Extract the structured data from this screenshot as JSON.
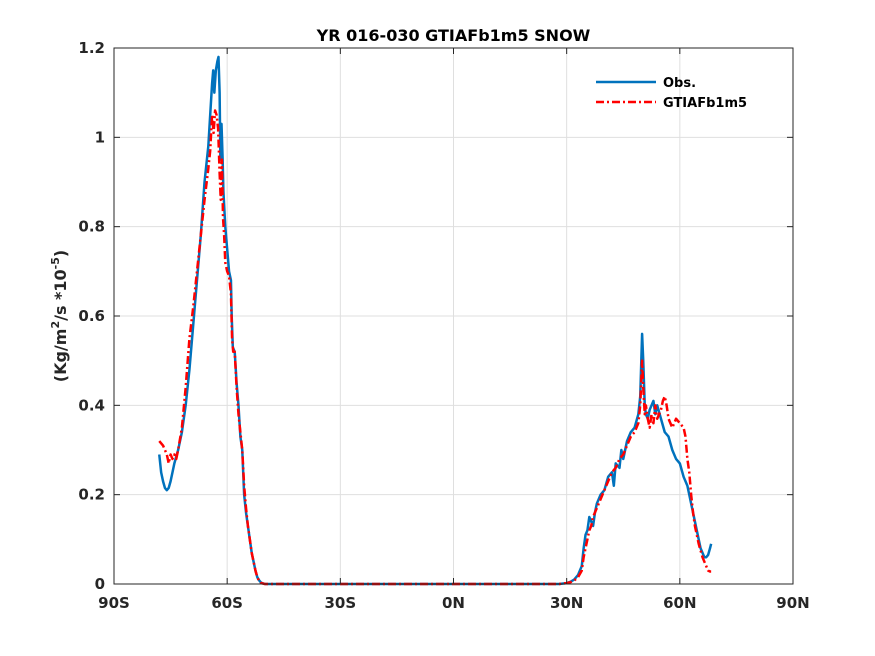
{
  "chart_data": {
    "type": "line",
    "title": "YR 016-030 GTIAFb1m5 SNOW",
    "xlabel": "",
    "ylabel_parts": {
      "prefix": "(Kg/m",
      "sup1": "2",
      "mid": "/s *10",
      "sup2": "-5",
      "suffix": ")"
    },
    "xlim": [
      -90,
      90
    ],
    "ylim": [
      0,
      1.2
    ],
    "x_ticks": [
      -90,
      -60,
      -30,
      0,
      30,
      60,
      90
    ],
    "x_tick_labels": [
      "90S",
      "60S",
      "30S",
      "0N",
      "30N",
      "60N",
      "90N"
    ],
    "y_ticks": [
      0,
      0.2,
      0.4,
      0.6,
      0.8,
      1,
      1.2
    ],
    "y_tick_labels": [
      "0",
      "0.2",
      "0.4",
      "0.6",
      "0.8",
      "1",
      "1.2"
    ],
    "grid": true,
    "legend_position": "top-right",
    "series": [
      {
        "name": "Obs.",
        "color": "#0072bd",
        "style": "solid",
        "points": [
          [
            -78,
            0.29
          ],
          [
            -77.5,
            0.25
          ],
          [
            -77,
            0.23
          ],
          [
            -76.5,
            0.215
          ],
          [
            -76,
            0.21
          ],
          [
            -75.5,
            0.215
          ],
          [
            -75,
            0.23
          ],
          [
            -74.5,
            0.25
          ],
          [
            -74,
            0.27
          ],
          [
            -73,
            0.3
          ],
          [
            -72,
            0.34
          ],
          [
            -71,
            0.4
          ],
          [
            -70,
            0.48
          ],
          [
            -69,
            0.58
          ],
          [
            -68,
            0.68
          ],
          [
            -67,
            0.78
          ],
          [
            -66,
            0.9
          ],
          [
            -65,
            0.98
          ],
          [
            -64.5,
            1.05
          ],
          [
            -64,
            1.12
          ],
          [
            -63.7,
            1.15
          ],
          [
            -63.4,
            1.1
          ],
          [
            -63,
            1.15
          ],
          [
            -62.6,
            1.17
          ],
          [
            -62.3,
            1.18
          ],
          [
            -62,
            1.1
          ],
          [
            -61.8,
            0.95
          ],
          [
            -61.5,
            1.03
          ],
          [
            -61.2,
            0.95
          ],
          [
            -61,
            0.88
          ],
          [
            -60.5,
            0.8
          ],
          [
            -60,
            0.75
          ],
          [
            -59.5,
            0.7
          ],
          [
            -59,
            0.68
          ],
          [
            -58.8,
            0.6
          ],
          [
            -58.5,
            0.53
          ],
          [
            -58,
            0.52
          ],
          [
            -57.5,
            0.45
          ],
          [
            -57,
            0.4
          ],
          [
            -56.5,
            0.33
          ],
          [
            -56,
            0.3
          ],
          [
            -55.5,
            0.2
          ],
          [
            -55,
            0.16
          ],
          [
            -54.5,
            0.13
          ],
          [
            -54,
            0.1
          ],
          [
            -53.5,
            0.07
          ],
          [
            -53,
            0.05
          ],
          [
            -52.5,
            0.03
          ],
          [
            -52,
            0.015
          ],
          [
            -51.5,
            0.008
          ],
          [
            -51,
            0.003
          ],
          [
            -50,
            0.0
          ],
          [
            -40,
            0.0
          ],
          [
            -30,
            0.0
          ],
          [
            -20,
            0.0
          ],
          [
            -10,
            0.0
          ],
          [
            0,
            0.0
          ],
          [
            10,
            0.0
          ],
          [
            20,
            0.0
          ],
          [
            28,
            0.0
          ],
          [
            30,
            0.002
          ],
          [
            31,
            0.005
          ],
          [
            32,
            0.01
          ],
          [
            33,
            0.02
          ],
          [
            34,
            0.04
          ],
          [
            34.5,
            0.08
          ],
          [
            35,
            0.11
          ],
          [
            35.5,
            0.12
          ],
          [
            36,
            0.15
          ],
          [
            36.5,
            0.14
          ],
          [
            37,
            0.13
          ],
          [
            37.5,
            0.16
          ],
          [
            38,
            0.18
          ],
          [
            39,
            0.2
          ],
          [
            40,
            0.21
          ],
          [
            41,
            0.24
          ],
          [
            42,
            0.25
          ],
          [
            42.5,
            0.22
          ],
          [
            43,
            0.27
          ],
          [
            44,
            0.26
          ],
          [
            44.5,
            0.3
          ],
          [
            45,
            0.28
          ],
          [
            46,
            0.32
          ],
          [
            47,
            0.34
          ],
          [
            48,
            0.35
          ],
          [
            49,
            0.38
          ],
          [
            49.5,
            0.42
          ],
          [
            50,
            0.56
          ],
          [
            50.3,
            0.5
          ],
          [
            50.7,
            0.4
          ],
          [
            51,
            0.38
          ],
          [
            51.5,
            0.37
          ],
          [
            52,
            0.39
          ],
          [
            52.5,
            0.4
          ],
          [
            53,
            0.41
          ],
          [
            53.5,
            0.38
          ],
          [
            54,
            0.4
          ],
          [
            55,
            0.37
          ],
          [
            56,
            0.34
          ],
          [
            57,
            0.33
          ],
          [
            58,
            0.3
          ],
          [
            59,
            0.28
          ],
          [
            60,
            0.27
          ],
          [
            61,
            0.24
          ],
          [
            62,
            0.22
          ],
          [
            63,
            0.18
          ],
          [
            64,
            0.14
          ],
          [
            65,
            0.1
          ],
          [
            65.5,
            0.08
          ],
          [
            66,
            0.07
          ],
          [
            66.5,
            0.06
          ],
          [
            67,
            0.06
          ],
          [
            67.5,
            0.065
          ],
          [
            68,
            0.08
          ],
          [
            68.3,
            0.09
          ]
        ]
      },
      {
        "name": "GTIAFb1m5",
        "color": "#ff0000",
        "style": "dashdot",
        "points": [
          [
            -78,
            0.32
          ],
          [
            -77.5,
            0.315
          ],
          [
            -77,
            0.31
          ],
          [
            -76.5,
            0.3
          ],
          [
            -76,
            0.29
          ],
          [
            -75.5,
            0.27
          ],
          [
            -75,
            0.29
          ],
          [
            -74.5,
            0.28
          ],
          [
            -74,
            0.29
          ],
          [
            -73.5,
            0.28
          ],
          [
            -73,
            0.3
          ],
          [
            -72,
            0.35
          ],
          [
            -71,
            0.44
          ],
          [
            -70,
            0.55
          ],
          [
            -69,
            0.62
          ],
          [
            -68,
            0.7
          ],
          [
            -67,
            0.78
          ],
          [
            -66,
            0.86
          ],
          [
            -65,
            0.93
          ],
          [
            -64.5,
            0.97
          ],
          [
            -64,
            1.05
          ],
          [
            -63.6,
            1.01
          ],
          [
            -63.2,
            1.06
          ],
          [
            -62.8,
            1.05
          ],
          [
            -62.4,
            1.02
          ],
          [
            -62,
            0.92
          ],
          [
            -61.7,
            0.86
          ],
          [
            -61.4,
            0.95
          ],
          [
            -61.1,
            0.82
          ],
          [
            -60.8,
            0.78
          ],
          [
            -60.5,
            0.72
          ],
          [
            -60,
            0.7
          ],
          [
            -59.5,
            0.69
          ],
          [
            -59,
            0.65
          ],
          [
            -58.7,
            0.55
          ],
          [
            -58.4,
            0.52
          ],
          [
            -58,
            0.52
          ],
          [
            -57.5,
            0.44
          ],
          [
            -57,
            0.38
          ],
          [
            -56.5,
            0.34
          ],
          [
            -56,
            0.3
          ],
          [
            -55.5,
            0.22
          ],
          [
            -55,
            0.17
          ],
          [
            -54.5,
            0.13
          ],
          [
            -54,
            0.1
          ],
          [
            -53.5,
            0.07
          ],
          [
            -53,
            0.05
          ],
          [
            -52.5,
            0.03
          ],
          [
            -52,
            0.015
          ],
          [
            -51.5,
            0.006
          ],
          [
            -51,
            0.002
          ],
          [
            -50,
            0.0
          ],
          [
            -40,
            0.0
          ],
          [
            -30,
            0.0
          ],
          [
            -20,
            0.0
          ],
          [
            -10,
            0.0
          ],
          [
            0,
            0.0
          ],
          [
            10,
            0.0
          ],
          [
            20,
            0.0
          ],
          [
            28,
            0.0
          ],
          [
            30,
            0.002
          ],
          [
            31,
            0.004
          ],
          [
            32,
            0.008
          ],
          [
            33,
            0.015
          ],
          [
            34,
            0.03
          ],
          [
            34.5,
            0.06
          ],
          [
            35,
            0.08
          ],
          [
            35.5,
            0.1
          ],
          [
            36,
            0.12
          ],
          [
            36.5,
            0.13
          ],
          [
            37,
            0.15
          ],
          [
            38,
            0.17
          ],
          [
            39,
            0.19
          ],
          [
            40,
            0.21
          ],
          [
            41,
            0.23
          ],
          [
            42,
            0.25
          ],
          [
            43,
            0.26
          ],
          [
            44,
            0.28
          ],
          [
            45,
            0.29
          ],
          [
            46,
            0.31
          ],
          [
            47,
            0.33
          ],
          [
            48,
            0.34
          ],
          [
            49,
            0.36
          ],
          [
            49.5,
            0.4
          ],
          [
            50,
            0.5
          ],
          [
            50.3,
            0.44
          ],
          [
            50.7,
            0.38
          ],
          [
            51,
            0.4
          ],
          [
            51.5,
            0.37
          ],
          [
            52,
            0.35
          ],
          [
            52.5,
            0.38
          ],
          [
            53,
            0.36
          ],
          [
            53.5,
            0.4
          ],
          [
            54,
            0.37
          ],
          [
            55,
            0.39
          ],
          [
            55.5,
            0.41
          ],
          [
            56,
            0.42
          ],
          [
            56.5,
            0.4
          ],
          [
            57,
            0.37
          ],
          [
            58,
            0.35
          ],
          [
            59,
            0.37
          ],
          [
            60,
            0.36
          ],
          [
            61,
            0.35
          ],
          [
            61.5,
            0.33
          ],
          [
            62,
            0.28
          ],
          [
            62.5,
            0.25
          ],
          [
            63,
            0.2
          ],
          [
            63.5,
            0.16
          ],
          [
            64,
            0.13
          ],
          [
            65,
            0.09
          ],
          [
            66,
            0.06
          ],
          [
            67,
            0.04
          ],
          [
            67.5,
            0.03
          ],
          [
            68,
            0.028
          ],
          [
            68.3,
            0.028
          ]
        ]
      }
    ]
  }
}
